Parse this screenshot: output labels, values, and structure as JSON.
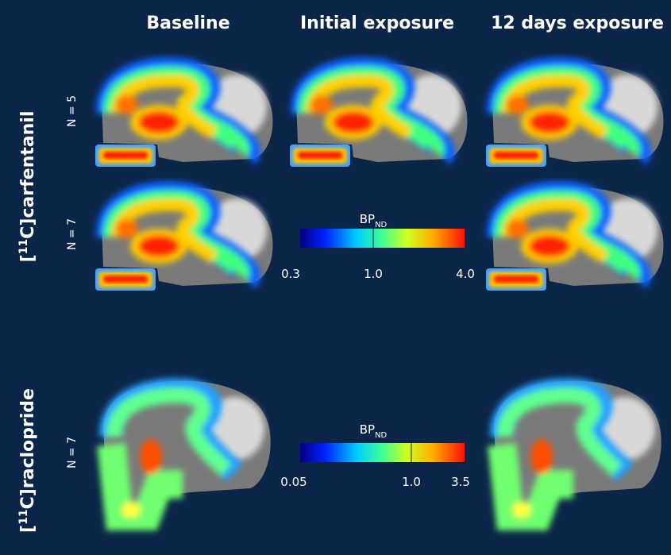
{
  "columns": [
    "Baseline",
    "Initial exposure",
    "12 days exposure"
  ],
  "rows": [
    {
      "label_prefix": "[",
      "label_sup": "11",
      "label_rest": "C]carfentanil",
      "groups": [
        "N = 5",
        "N = 7"
      ],
      "colorbar": {
        "label": "BP",
        "label_sub": "ND",
        "ticks": [
          "0.3",
          "1.0",
          "4.0"
        ]
      }
    },
    {
      "label_prefix": "[",
      "label_sup": "11",
      "label_rest": "C]raclopride",
      "groups": [
        "N = 7"
      ],
      "colorbar": {
        "label": "BP",
        "label_sub": "ND",
        "ticks": [
          "0.05",
          "1.0",
          "3.5"
        ]
      }
    }
  ]
}
